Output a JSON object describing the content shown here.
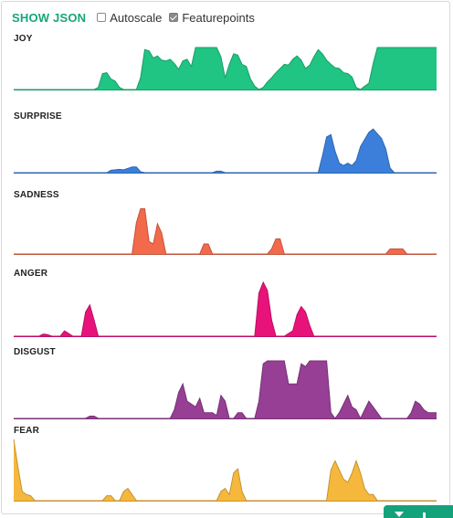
{
  "toolbar": {
    "show_json_label": "SHOW JSON",
    "autoscale": {
      "label": "Autoscale",
      "checked": false
    },
    "featurepoints": {
      "label": "Featurepoints",
      "checked": true
    }
  },
  "chart_data": [
    {
      "type": "area",
      "title": "JOY",
      "color": "#20c483",
      "ylim": [
        0,
        1
      ],
      "x": [
        0,
        1,
        2,
        3,
        4,
        5,
        6,
        7,
        8,
        9,
        10,
        11,
        12,
        13,
        14,
        15,
        16,
        17,
        18,
        19,
        20,
        21,
        22,
        23,
        24,
        25,
        26,
        27,
        28,
        29,
        30,
        31,
        32,
        33,
        34,
        35,
        36,
        37,
        38,
        39,
        40,
        41,
        42,
        43,
        44,
        45,
        46,
        47,
        48,
        49,
        50,
        51,
        52,
        53,
        54,
        55,
        56,
        57,
        58,
        59,
        60,
        61,
        62,
        63,
        64,
        65,
        66,
        67,
        68,
        69,
        70,
        71,
        72,
        73,
        74,
        75,
        76,
        77,
        78,
        79,
        80,
        81,
        82,
        83,
        84,
        85,
        86,
        87,
        88,
        89,
        90,
        91,
        92,
        93,
        94,
        95,
        96,
        97,
        98,
        99,
        100
      ],
      "values": [
        0,
        0,
        0,
        0,
        0,
        0,
        0,
        0,
        0,
        0,
        0,
        0,
        0,
        0,
        0,
        0,
        0,
        0,
        0,
        0,
        0.05,
        0.38,
        0.4,
        0.25,
        0.2,
        0.05,
        0,
        0,
        0,
        0,
        0.28,
        0.95,
        0.92,
        0.75,
        0.8,
        0.7,
        0.68,
        0.72,
        0.62,
        0.48,
        0.68,
        0.72,
        0.55,
        1,
        1,
        1,
        1,
        1,
        1,
        0.78,
        0.28,
        0.6,
        0.85,
        0.82,
        0.6,
        0.55,
        0.25,
        0.08,
        0,
        0.05,
        0.18,
        0.28,
        0.4,
        0.5,
        0.6,
        0.58,
        0.72,
        0.8,
        0.7,
        0.5,
        0.58,
        0.78,
        0.95,
        0.85,
        0.7,
        0.6,
        0.52,
        0.5,
        0.4,
        0.38,
        0.3,
        0.05,
        0,
        0.08,
        0.15,
        0.62,
        1,
        1,
        1,
        1,
        1,
        1,
        1,
        1,
        1,
        1,
        1,
        1,
        1,
        1,
        1
      ]
    },
    {
      "type": "area",
      "title": "SURPRISE",
      "color": "#3b7fdb",
      "ylim": [
        0,
        1
      ],
      "x": [
        0,
        1,
        2,
        3,
        4,
        5,
        6,
        7,
        8,
        9,
        10,
        11,
        12,
        13,
        14,
        15,
        16,
        17,
        18,
        19,
        20,
        21,
        22,
        23,
        24,
        25,
        26,
        27,
        28,
        29,
        30,
        31,
        32,
        33,
        34,
        35,
        36,
        37,
        38,
        39,
        40,
        41,
        42,
        43,
        44,
        45,
        46,
        47,
        48,
        49,
        50,
        51,
        52,
        53,
        54,
        55,
        56,
        57,
        58,
        59,
        60,
        61,
        62,
        63,
        64,
        65,
        66,
        67,
        68,
        69,
        70,
        71,
        72,
        73,
        74,
        75,
        76,
        77,
        78,
        79,
        80,
        81,
        82,
        83,
        84,
        85,
        86,
        87,
        88,
        89,
        90,
        91,
        92,
        93,
        94,
        95,
        96,
        97,
        98,
        99,
        100
      ],
      "values": [
        0,
        0,
        0,
        0,
        0,
        0,
        0,
        0,
        0,
        0,
        0,
        0,
        0,
        0,
        0,
        0,
        0,
        0,
        0,
        0,
        0,
        0,
        0,
        0.05,
        0.06,
        0.07,
        0.06,
        0.09,
        0.12,
        0.12,
        0.02,
        0,
        0,
        0,
        0,
        0,
        0,
        0,
        0,
        0,
        0,
        0,
        0,
        0,
        0,
        0,
        0,
        0,
        0.03,
        0.03,
        0,
        0,
        0,
        0,
        0,
        0,
        0,
        0,
        0,
        0,
        0,
        0,
        0,
        0,
        0,
        0,
        0,
        0,
        0,
        0,
        0,
        0,
        0,
        0.35,
        0.75,
        0.8,
        0.45,
        0.2,
        0.15,
        0.2,
        0.15,
        0.25,
        0.55,
        0.7,
        0.85,
        0.92,
        0.82,
        0.72,
        0.5,
        0.1,
        0,
        0,
        0,
        0,
        0,
        0,
        0,
        0,
        0,
        0,
        0
      ]
    },
    {
      "type": "area",
      "title": "SADNESS",
      "color": "#f26a4b",
      "ylim": [
        0,
        1
      ],
      "x": [
        0,
        1,
        2,
        3,
        4,
        5,
        6,
        7,
        8,
        9,
        10,
        11,
        12,
        13,
        14,
        15,
        16,
        17,
        18,
        19,
        20,
        21,
        22,
        23,
        24,
        25,
        26,
        27,
        28,
        29,
        30,
        31,
        32,
        33,
        34,
        35,
        36,
        37,
        38,
        39,
        40,
        41,
        42,
        43,
        44,
        45,
        46,
        47,
        48,
        49,
        50,
        51,
        52,
        53,
        54,
        55,
        56,
        57,
        58,
        59,
        60,
        61,
        62,
        63,
        64,
        65,
        66,
        67,
        68,
        69,
        70,
        71,
        72,
        73,
        74,
        75,
        76,
        77,
        78,
        79,
        80,
        81,
        82,
        83,
        84,
        85,
        86,
        87,
        88,
        89,
        90,
        91,
        92,
        93,
        94,
        95,
        96,
        97,
        98,
        99,
        100
      ],
      "values": [
        0,
        0,
        0,
        0,
        0,
        0,
        0,
        0,
        0,
        0,
        0,
        0,
        0,
        0,
        0,
        0,
        0,
        0,
        0,
        0,
        0,
        0,
        0,
        0,
        0,
        0,
        0,
        0,
        0,
        0.62,
        0.9,
        0.9,
        0.25,
        0.2,
        0.6,
        0.42,
        0,
        0,
        0,
        0,
        0,
        0,
        0,
        0,
        0,
        0.2,
        0.2,
        0,
        0,
        0,
        0,
        0,
        0,
        0,
        0,
        0,
        0,
        0,
        0,
        0,
        0,
        0.1,
        0.3,
        0.3,
        0,
        0,
        0,
        0,
        0,
        0,
        0,
        0,
        0,
        0,
        0,
        0,
        0,
        0,
        0,
        0,
        0,
        0,
        0,
        0,
        0,
        0,
        0,
        0,
        0,
        0.1,
        0.1,
        0.1,
        0.1,
        0,
        0,
        0,
        0,
        0,
        0,
        0,
        0
      ]
    },
    {
      "type": "area",
      "title": "ANGER",
      "color": "#e8137a",
      "ylim": [
        0,
        1
      ],
      "x": [
        0,
        1,
        2,
        3,
        4,
        5,
        6,
        7,
        8,
        9,
        10,
        11,
        12,
        13,
        14,
        15,
        16,
        17,
        18,
        19,
        20,
        21,
        22,
        23,
        24,
        25,
        26,
        27,
        28,
        29,
        30,
        31,
        32,
        33,
        34,
        35,
        36,
        37,
        38,
        39,
        40,
        41,
        42,
        43,
        44,
        45,
        46,
        47,
        48,
        49,
        50,
        51,
        52,
        53,
        54,
        55,
        56,
        57,
        58,
        59,
        60,
        61,
        62,
        63,
        64,
        65,
        66,
        67,
        68,
        69,
        70,
        71,
        72,
        73,
        74,
        75,
        76,
        77,
        78,
        79,
        80,
        81,
        82,
        83,
        84,
        85,
        86,
        87,
        88,
        89,
        90,
        91,
        92,
        93,
        94,
        95,
        96,
        97,
        98,
        99,
        100
      ],
      "values": [
        0,
        0,
        0,
        0,
        0,
        0,
        0,
        0.04,
        0.03,
        0,
        0,
        0,
        0.1,
        0.05,
        0,
        0,
        0,
        0.45,
        0.58,
        0.3,
        0,
        0,
        0,
        0,
        0,
        0,
        0,
        0,
        0,
        0,
        0,
        0,
        0,
        0,
        0,
        0,
        0,
        0,
        0,
        0,
        0,
        0,
        0,
        0,
        0,
        0,
        0,
        0,
        0,
        0,
        0,
        0,
        0,
        0,
        0,
        0,
        0,
        0,
        0.8,
        1,
        0.85,
        0.3,
        0,
        0,
        0,
        0.05,
        0.1,
        0.4,
        0.55,
        0.45,
        0.2,
        0,
        0,
        0,
        0,
        0,
        0,
        0,
        0,
        0,
        0,
        0,
        0,
        0,
        0,
        0,
        0,
        0,
        0,
        0,
        0,
        0,
        0,
        0,
        0,
        0,
        0,
        0,
        0,
        0,
        0
      ]
    },
    {
      "type": "area",
      "title": "DISGUST",
      "color": "#963f94",
      "ylim": [
        0,
        1
      ],
      "x": [
        0,
        1,
        2,
        3,
        4,
        5,
        6,
        7,
        8,
        9,
        10,
        11,
        12,
        13,
        14,
        15,
        16,
        17,
        18,
        19,
        20,
        21,
        22,
        23,
        24,
        25,
        26,
        27,
        28,
        29,
        30,
        31,
        32,
        33,
        34,
        35,
        36,
        37,
        38,
        39,
        40,
        41,
        42,
        43,
        44,
        45,
        46,
        47,
        48,
        49,
        50,
        51,
        52,
        53,
        54,
        55,
        56,
        57,
        58,
        59,
        60,
        61,
        62,
        63,
        64,
        65,
        66,
        67,
        68,
        69,
        70,
        71,
        72,
        73,
        74,
        75,
        76,
        77,
        78,
        79,
        80,
        81,
        82,
        83,
        84,
        85,
        86,
        87,
        88,
        89,
        90,
        91,
        92,
        93,
        94,
        95,
        96,
        97,
        98,
        99,
        100
      ],
      "values": [
        0,
        0,
        0,
        0,
        0,
        0,
        0,
        0,
        0,
        0,
        0,
        0,
        0,
        0,
        0,
        0,
        0,
        0,
        0.04,
        0.04,
        0,
        0,
        0,
        0,
        0,
        0,
        0,
        0,
        0,
        0,
        0,
        0,
        0,
        0,
        0,
        0,
        0,
        0,
        0.15,
        0.45,
        0.6,
        0.3,
        0.25,
        0.2,
        0.35,
        0.1,
        0.1,
        0.1,
        0.05,
        0.4,
        0.3,
        0,
        0,
        0.1,
        0.1,
        0,
        0,
        0,
        0.3,
        0.95,
        1,
        1,
        1,
        1,
        1,
        0.6,
        0.6,
        0.6,
        0.95,
        0.9,
        1,
        1,
        1,
        1,
        1,
        0.1,
        0,
        0.1,
        0.25,
        0.4,
        0.2,
        0.15,
        0,
        0.15,
        0.3,
        0.2,
        0.1,
        0,
        0,
        0,
        0,
        0,
        0,
        0,
        0.1,
        0.3,
        0.25,
        0.15,
        0.1,
        0.1,
        0.1
      ]
    },
    {
      "type": "area",
      "title": "FEAR",
      "color": "#f5b83d",
      "ylim": [
        0,
        1
      ],
      "x": [
        0,
        1,
        2,
        3,
        4,
        5,
        6,
        7,
        8,
        9,
        10,
        11,
        12,
        13,
        14,
        15,
        16,
        17,
        18,
        19,
        20,
        21,
        22,
        23,
        24,
        25,
        26,
        27,
        28,
        29,
        30,
        31,
        32,
        33,
        34,
        35,
        36,
        37,
        38,
        39,
        40,
        41,
        42,
        43,
        44,
        45,
        46,
        47,
        48,
        49,
        50,
        51,
        52,
        53,
        54,
        55,
        56,
        57,
        58,
        59,
        60,
        61,
        62,
        63,
        64,
        65,
        66,
        67,
        68,
        69,
        70,
        71,
        72,
        73,
        74,
        75,
        76,
        77,
        78,
        79,
        80,
        81,
        82,
        83,
        84,
        85,
        86,
        87,
        88,
        89,
        90,
        91,
        92,
        93,
        94,
        95,
        96,
        97,
        98,
        99,
        100
      ],
      "values": [
        1,
        0.55,
        0.15,
        0.1,
        0.08,
        0,
        0,
        0,
        0,
        0,
        0,
        0,
        0,
        0,
        0,
        0,
        0,
        0,
        0,
        0,
        0,
        0,
        0.08,
        0.08,
        0,
        0,
        0.15,
        0.2,
        0.1,
        0,
        0,
        0,
        0,
        0,
        0,
        0,
        0,
        0,
        0,
        0,
        0,
        0,
        0,
        0,
        0,
        0,
        0,
        0,
        0,
        0.15,
        0.2,
        0.1,
        0.45,
        0.52,
        0.15,
        0,
        0,
        0,
        0,
        0,
        0,
        0,
        0,
        0,
        0,
        0,
        0,
        0,
        0,
        0,
        0,
        0,
        0,
        0,
        0,
        0.5,
        0.65,
        0.5,
        0.35,
        0.3,
        0.45,
        0.65,
        0.45,
        0.2,
        0.1,
        0.1,
        0,
        0,
        0,
        0,
        0,
        0,
        0,
        0,
        0,
        0,
        0,
        0,
        0,
        0,
        0
      ]
    }
  ],
  "corner_tab": {
    "icon": "chevron-down-icon"
  }
}
